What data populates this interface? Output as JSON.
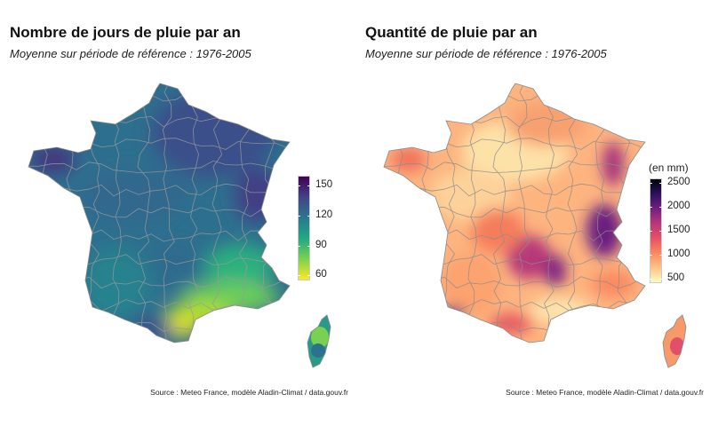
{
  "left": {
    "title": "Nombre de jours de pluie par an",
    "subtitle": "Moyenne sur période de référence : 1976-2005",
    "caption": "Source : Meteo France, modèle Aladin-Climat / data.gouv.fr",
    "legend": {
      "title": "",
      "scale": "viridis",
      "min": 55,
      "max": 160,
      "ticks": [
        150,
        120,
        90,
        60
      ],
      "colors": [
        "#fde725",
        "#7ad151",
        "#22a884",
        "#2a788e",
        "#414487",
        "#440154"
      ]
    }
  },
  "right": {
    "title": "Quantité de pluie par an",
    "subtitle": "Moyenne sur période de référence : 1976-2005",
    "caption": "Source : Meteo France, modèle Aladin-Climat / data.gouv.fr",
    "legend": {
      "title": "(en mm)",
      "scale": "magma",
      "min": 400,
      "max": 2600,
      "ticks": [
        2500,
        2000,
        1500,
        1000,
        500
      ],
      "colors": [
        "#fcfdbf",
        "#fec287",
        "#fb8861",
        "#e55064",
        "#b73779",
        "#721f81",
        "#2c115f",
        "#000004"
      ]
    }
  }
}
